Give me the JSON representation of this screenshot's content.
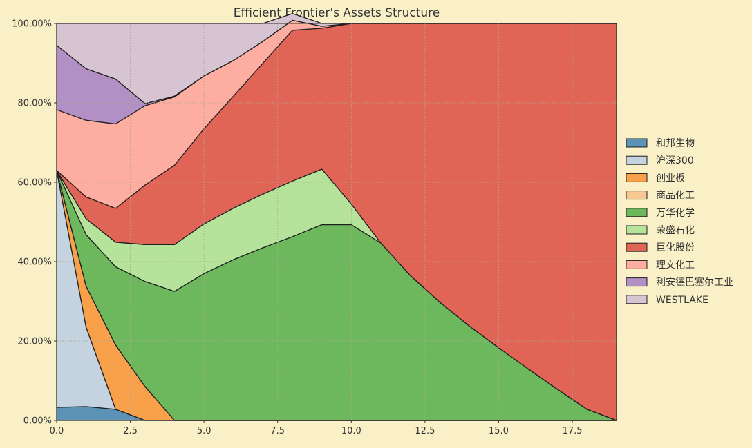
{
  "chart_data": {
    "type": "area",
    "stacked": true,
    "title": "Efficient Frontier's Assets Structure",
    "xlabel": "",
    "ylabel": "",
    "xlim": [
      0,
      19
    ],
    "ylim": [
      0,
      1
    ],
    "grid": true,
    "legend_position": "right",
    "x_ticks": [
      "0.0",
      "2.5",
      "5.0",
      "7.5",
      "10.0",
      "12.5",
      "15.0",
      "17.5"
    ],
    "y_ticks": [
      "0.00%",
      "20.00%",
      "40.00%",
      "60.00%",
      "80.00%",
      "100.00%"
    ],
    "x": [
      0,
      1,
      2,
      3,
      4,
      5,
      6,
      7,
      8,
      9,
      10,
      11,
      12,
      13,
      14,
      15,
      16,
      17,
      18,
      19
    ],
    "series": [
      {
        "name": "和邦生物",
        "color": "#5b92b5",
        "values": [
          0.033,
          0.035,
          0.028,
          0,
          0,
          0,
          0,
          0,
          0,
          0,
          0,
          0,
          0,
          0,
          0,
          0,
          0,
          0,
          0,
          0
        ]
      },
      {
        "name": "沪深300",
        "color": "#c4d3df",
        "values": [
          0.597,
          0.2,
          0,
          0,
          0,
          0,
          0,
          0,
          0,
          0,
          0,
          0,
          0,
          0,
          0,
          0,
          0,
          0,
          0,
          0
        ]
      },
      {
        "name": "创业板",
        "color": "#f9a04b",
        "values": [
          0,
          0.103,
          0.162,
          0.085,
          0,
          0,
          0,
          0,
          0,
          0,
          0,
          0,
          0,
          0,
          0,
          0,
          0,
          0,
          0,
          0
        ]
      },
      {
        "name": "商品化工",
        "color": "#f8c893",
        "values": [
          0,
          0,
          0,
          0,
          0,
          0,
          0,
          0,
          0,
          0,
          0,
          0,
          0,
          0,
          0,
          0,
          0,
          0,
          0,
          0
        ]
      },
      {
        "name": "万华化学",
        "color": "#6db75d",
        "values": [
          0,
          0.13,
          0.197,
          0.265,
          0.325,
          0.37,
          0.405,
          0.435,
          0.463,
          0.493,
          0.493,
          0.447,
          0.365,
          0.298,
          0.238,
          0.183,
          0.13,
          0.078,
          0.028,
          0
        ]
      },
      {
        "name": "荣盛石化",
        "color": "#b5e39b",
        "values": [
          0,
          0.04,
          0.062,
          0.093,
          0.118,
          0.125,
          0.13,
          0.135,
          0.14,
          0.14,
          0.052,
          0,
          0,
          0,
          0,
          0,
          0,
          0,
          0,
          0
        ]
      },
      {
        "name": "巨化股份",
        "color": "#e16557",
        "values": [
          0,
          0.055,
          0.085,
          0.15,
          0.2,
          0.24,
          0.282,
          0.33,
          0.38,
          0.355,
          0.455,
          0.553,
          0.635,
          0.702,
          0.762,
          0.817,
          0.87,
          0.922,
          0.972,
          1.0
        ]
      },
      {
        "name": "理文化工",
        "color": "#fdaea1",
        "values": [
          0.153,
          0.193,
          0.213,
          0.2,
          0.172,
          0.133,
          0.09,
          0.055,
          0.025,
          0.005,
          0,
          0,
          0,
          0,
          0,
          0,
          0,
          0,
          0,
          0
        ]
      },
      {
        "name": "利安德巴塞尔工业",
        "color": "#b28fc5",
        "values": [
          0.162,
          0.13,
          0.113,
          0.005,
          0.002,
          0,
          0,
          0,
          0,
          0,
          0,
          0,
          0,
          0,
          0,
          0,
          0,
          0,
          0,
          0
        ]
      },
      {
        "name": "WESTLAKE",
        "color": "#d6c4d2",
        "values": [
          0.055,
          0.114,
          0.14,
          0.202,
          0.183,
          0.132,
          0.093,
          0.045,
          0.017,
          0.007,
          0,
          0,
          0,
          0,
          0,
          0,
          0,
          0,
          0,
          0
        ]
      }
    ]
  }
}
